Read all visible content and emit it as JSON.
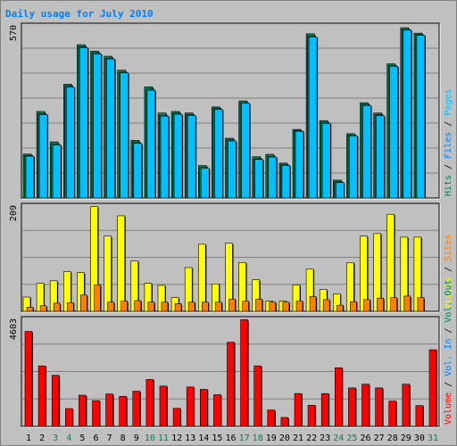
{
  "title": "Daily usage for July 2010",
  "colors": {
    "background": "#c0c0c0",
    "frame": "#ffffff",
    "title": "#0080ff",
    "grid": "#808080",
    "hits": "#00805c",
    "files": "#00c0ff",
    "visits": "#ffff00",
    "sites": "#ff8000",
    "volume": "#ff0000",
    "axis_text": "#000000",
    "weekend_day": "#00805c"
  },
  "legend_top": [
    {
      "label": "Hits",
      "color": "#00805c"
    },
    {
      "label": "Files",
      "color": "#0080ff"
    },
    {
      "label": "Pages",
      "color": "#00c0ff"
    }
  ],
  "legend_mid": [
    {
      "label": "Visits",
      "color": "#ffff00"
    },
    {
      "label": "Sites",
      "color": "#ff8000"
    }
  ],
  "legend_bot": [
    {
      "label": "Volume",
      "color": "#ff0000"
    },
    {
      "label": "Vol. In",
      "color": "#0080ff"
    },
    {
      "label": "Vol. Out",
      "color": "#00805c"
    }
  ],
  "chart_data": {
    "type": "bar",
    "title": "Daily usage for July 2010",
    "categories": [
      "1",
      "2",
      "3",
      "4",
      "5",
      "6",
      "7",
      "8",
      "9",
      "10",
      "11",
      "12",
      "13",
      "14",
      "15",
      "16",
      "17",
      "18",
      "19",
      "20",
      "21",
      "22",
      "23",
      "24",
      "25",
      "26",
      "27",
      "28",
      "29",
      "30",
      "31"
    ],
    "weekend_days": [
      "3",
      "4",
      "10",
      "11",
      "17",
      "18",
      "24",
      "25",
      "31"
    ],
    "panels": [
      {
        "name": "hits-files-pages",
        "ymax_label": "570",
        "ylim": [
          0,
          570
        ],
        "series": [
          {
            "name": "Hits",
            "values": [
              145,
              285,
              185,
              375,
              505,
              484,
              467,
              421,
              190,
              366,
              280,
              285,
              280,
              107,
              300,
              197,
              320,
              136,
              144,
              115,
              226,
              541,
              255,
              59,
              212,
              314,
              280,
              442,
              561,
              543,
              0
            ]
          },
          {
            "name": "Files",
            "values": [
              140,
              278,
              177,
              368,
              498,
              478,
              460,
              414,
              183,
              359,
              272,
              279,
              274,
              101,
              294,
              191,
              314,
              129,
              137,
              109,
              222,
              534,
              249,
              53,
              207,
              308,
              274,
              437,
              555,
              538,
              0
            ]
          },
          {
            "name": "Pages",
            "values": [
              138,
              275,
              175,
              365,
              495,
              475,
              458,
              412,
              180,
              355,
              270,
              276,
              272,
              98,
              292,
              188,
              312,
              127,
              135,
              107,
              220,
              530,
              246,
              51,
              205,
              305,
              271,
              434,
              553,
              536,
              0
            ]
          }
        ]
      },
      {
        "name": "visits-sites",
        "ymax_label": "209",
        "ylim": [
          0,
          209
        ],
        "series": [
          {
            "name": "Visits",
            "values": [
              28,
              55,
              60,
              78,
              76,
              206,
              148,
              188,
              99,
              55,
              51,
              27,
              86,
              132,
              54,
              134,
              96,
              62,
              20,
              20,
              52,
              83,
              43,
              34,
              96,
              148,
              153,
              191,
              146,
              146,
              0
            ]
          },
          {
            "name": "Sites",
            "values": [
              8,
              11,
              16,
              17,
              32,
              52,
              18,
              20,
              21,
              18,
              18,
              15,
              18,
              18,
              18,
              24,
              20,
              24,
              18,
              18,
              20,
              29,
              23,
              12,
              19,
              23,
              26,
              27,
              30,
              27,
              0
            ]
          }
        ]
      },
      {
        "name": "volume",
        "ymax_label": "4603",
        "ylim": [
          0,
          4603
        ],
        "series": [
          {
            "name": "Volume",
            "values": [
              4050,
              2580,
              2180,
              760,
              1330,
              1100,
              1380,
              1280,
              1500,
              2000,
              1720,
              770,
              1680,
              1580,
              1350,
              3590,
              4550,
              2580,
              700,
              380,
              1400,
              900,
              1400,
              2500,
              1640,
              1800,
              1640,
              1080,
              1800,
              890,
              3270
            ]
          }
        ]
      }
    ]
  }
}
